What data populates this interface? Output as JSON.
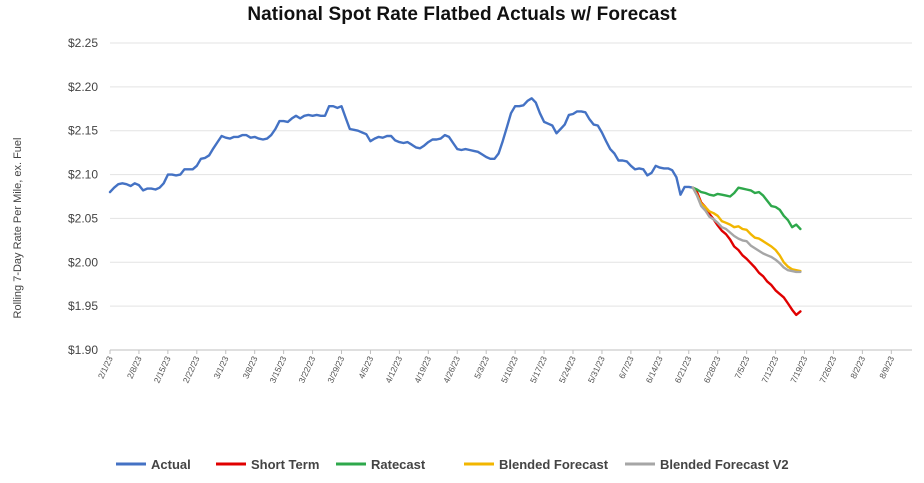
{
  "chart_data": {
    "type": "line",
    "title": "National Spot Rate Flatbed Actuals w/ Forecast",
    "xlabel": "",
    "ylabel": "Rolling 7-Day Rate Per Mile, ex. Fuel",
    "ylim": [
      1.9,
      2.25
    ],
    "y_ticks": [
      "$1.90",
      "$1.95",
      "$2.00",
      "$2.05",
      "$2.10",
      "$2.15",
      "$2.20",
      "$2.25"
    ],
    "y_tick_values": [
      1.9,
      1.95,
      2.0,
      2.05,
      2.1,
      2.15,
      2.2,
      2.25
    ],
    "x_ticks": [
      "2/1/23",
      "2/8/23",
      "2/15/23",
      "2/22/23",
      "3/1/23",
      "3/8/23",
      "3/15/23",
      "3/22/23",
      "3/29/23",
      "4/5/23",
      "4/12/23",
      "4/19/23",
      "4/26/23",
      "5/3/23",
      "5/10/23",
      "5/17/23",
      "5/24/23",
      "5/31/23",
      "6/7/23",
      "6/14/23",
      "6/21/23",
      "6/28/23",
      "7/5/23",
      "7/12/23",
      "7/19/23",
      "7/26/23",
      "8/2/23",
      "8/9/23"
    ],
    "x_range": [
      "2023-02-01",
      "2023-08-14"
    ],
    "grid": "horizontal",
    "legend_position": "bottom",
    "series": [
      {
        "name": "Actual",
        "color": "#4472C4",
        "points": [
          [
            "2023-02-01",
            2.08
          ],
          [
            "2023-02-02",
            2.085
          ],
          [
            "2023-02-03",
            2.089
          ],
          [
            "2023-02-04",
            2.09
          ],
          [
            "2023-02-05",
            2.089
          ],
          [
            "2023-02-06",
            2.087
          ],
          [
            "2023-02-07",
            2.09
          ],
          [
            "2023-02-08",
            2.088
          ],
          [
            "2023-02-09",
            2.082
          ],
          [
            "2023-02-10",
            2.084
          ],
          [
            "2023-02-11",
            2.084
          ],
          [
            "2023-02-12",
            2.083
          ],
          [
            "2023-02-13",
            2.085
          ],
          [
            "2023-02-14",
            2.09
          ],
          [
            "2023-02-15",
            2.1
          ],
          [
            "2023-02-16",
            2.1
          ],
          [
            "2023-02-17",
            2.099
          ],
          [
            "2023-02-18",
            2.1
          ],
          [
            "2023-02-19",
            2.106
          ],
          [
            "2023-02-20",
            2.106
          ],
          [
            "2023-02-21",
            2.106
          ],
          [
            "2023-02-22",
            2.11
          ],
          [
            "2023-02-23",
            2.118
          ],
          [
            "2023-02-24",
            2.119
          ],
          [
            "2023-02-25",
            2.122
          ],
          [
            "2023-02-26",
            2.13
          ],
          [
            "2023-02-27",
            2.137
          ],
          [
            "2023-02-28",
            2.144
          ],
          [
            "2023-03-01",
            2.142
          ],
          [
            "2023-03-02",
            2.141
          ],
          [
            "2023-03-03",
            2.143
          ],
          [
            "2023-03-04",
            2.143
          ],
          [
            "2023-03-05",
            2.145
          ],
          [
            "2023-03-06",
            2.145
          ],
          [
            "2023-03-07",
            2.142
          ],
          [
            "2023-03-08",
            2.143
          ],
          [
            "2023-03-09",
            2.141
          ],
          [
            "2023-03-10",
            2.14
          ],
          [
            "2023-03-11",
            2.141
          ],
          [
            "2023-03-12",
            2.145
          ],
          [
            "2023-03-13",
            2.152
          ],
          [
            "2023-03-14",
            2.161
          ],
          [
            "2023-03-15",
            2.161
          ],
          [
            "2023-03-16",
            2.16
          ],
          [
            "2023-03-17",
            2.164
          ],
          [
            "2023-03-18",
            2.167
          ],
          [
            "2023-03-19",
            2.164
          ],
          [
            "2023-03-20",
            2.167
          ],
          [
            "2023-03-21",
            2.168
          ],
          [
            "2023-03-22",
            2.167
          ],
          [
            "2023-03-23",
            2.168
          ],
          [
            "2023-03-24",
            2.167
          ],
          [
            "2023-03-25",
            2.167
          ],
          [
            "2023-03-26",
            2.178
          ],
          [
            "2023-03-27",
            2.178
          ],
          [
            "2023-03-28",
            2.176
          ],
          [
            "2023-03-29",
            2.178
          ],
          [
            "2023-03-30",
            2.165
          ],
          [
            "2023-03-31",
            2.152
          ],
          [
            "2023-04-01",
            2.151
          ],
          [
            "2023-04-02",
            2.15
          ],
          [
            "2023-04-03",
            2.148
          ],
          [
            "2023-04-04",
            2.146
          ],
          [
            "2023-04-05",
            2.138
          ],
          [
            "2023-04-06",
            2.141
          ],
          [
            "2023-04-07",
            2.143
          ],
          [
            "2023-04-08",
            2.142
          ],
          [
            "2023-04-09",
            2.144
          ],
          [
            "2023-04-10",
            2.144
          ],
          [
            "2023-04-11",
            2.139
          ],
          [
            "2023-04-12",
            2.137
          ],
          [
            "2023-04-13",
            2.136
          ],
          [
            "2023-04-14",
            2.137
          ],
          [
            "2023-04-15",
            2.134
          ],
          [
            "2023-04-16",
            2.131
          ],
          [
            "2023-04-17",
            2.13
          ],
          [
            "2023-04-18",
            2.133
          ],
          [
            "2023-04-19",
            2.137
          ],
          [
            "2023-04-20",
            2.14
          ],
          [
            "2023-04-21",
            2.14
          ],
          [
            "2023-04-22",
            2.141
          ],
          [
            "2023-04-23",
            2.145
          ],
          [
            "2023-04-24",
            2.143
          ],
          [
            "2023-04-25",
            2.136
          ],
          [
            "2023-04-26",
            2.129
          ],
          [
            "2023-04-27",
            2.128
          ],
          [
            "2023-04-28",
            2.129
          ],
          [
            "2023-04-29",
            2.128
          ],
          [
            "2023-04-30",
            2.127
          ],
          [
            "2023-05-01",
            2.126
          ],
          [
            "2023-05-02",
            2.123
          ],
          [
            "2023-05-03",
            2.12
          ],
          [
            "2023-05-04",
            2.118
          ],
          [
            "2023-05-05",
            2.118
          ],
          [
            "2023-05-06",
            2.124
          ],
          [
            "2023-05-07",
            2.138
          ],
          [
            "2023-05-08",
            2.154
          ],
          [
            "2023-05-09",
            2.17
          ],
          [
            "2023-05-10",
            2.178
          ],
          [
            "2023-05-11",
            2.178
          ],
          [
            "2023-05-12",
            2.179
          ],
          [
            "2023-05-13",
            2.184
          ],
          [
            "2023-05-14",
            2.187
          ],
          [
            "2023-05-15",
            2.182
          ],
          [
            "2023-05-16",
            2.17
          ],
          [
            "2023-05-17",
            2.16
          ],
          [
            "2023-05-18",
            2.158
          ],
          [
            "2023-05-19",
            2.156
          ],
          [
            "2023-05-20",
            2.147
          ],
          [
            "2023-05-21",
            2.152
          ],
          [
            "2023-05-22",
            2.157
          ],
          [
            "2023-05-23",
            2.168
          ],
          [
            "2023-05-24",
            2.169
          ],
          [
            "2023-05-25",
            2.172
          ],
          [
            "2023-05-26",
            2.172
          ],
          [
            "2023-05-27",
            2.171
          ],
          [
            "2023-05-28",
            2.163
          ],
          [
            "2023-05-29",
            2.157
          ],
          [
            "2023-05-30",
            2.156
          ],
          [
            "2023-05-31",
            2.148
          ],
          [
            "2023-06-01",
            2.138
          ],
          [
            "2023-06-02",
            2.129
          ],
          [
            "2023-06-03",
            2.124
          ],
          [
            "2023-06-04",
            2.116
          ],
          [
            "2023-06-05",
            2.116
          ],
          [
            "2023-06-06",
            2.115
          ],
          [
            "2023-06-07",
            2.11
          ],
          [
            "2023-06-08",
            2.106
          ],
          [
            "2023-06-09",
            2.107
          ],
          [
            "2023-06-10",
            2.106
          ],
          [
            "2023-06-11",
            2.099
          ],
          [
            "2023-06-12",
            2.102
          ],
          [
            "2023-06-13",
            2.11
          ],
          [
            "2023-06-14",
            2.108
          ],
          [
            "2023-06-15",
            2.107
          ],
          [
            "2023-06-16",
            2.107
          ],
          [
            "2023-06-17",
            2.105
          ],
          [
            "2023-06-18",
            2.097
          ],
          [
            "2023-06-19",
            2.077
          ],
          [
            "2023-06-20",
            2.086
          ],
          [
            "2023-06-21",
            2.086
          ],
          [
            "2023-06-22",
            2.085
          ]
        ]
      },
      {
        "name": "Short Term",
        "color": "#E00000",
        "points": [
          [
            "2023-06-22",
            2.085
          ],
          [
            "2023-06-23",
            2.08
          ],
          [
            "2023-06-24",
            2.068
          ],
          [
            "2023-06-25",
            2.063
          ],
          [
            "2023-06-26",
            2.055
          ],
          [
            "2023-06-27",
            2.049
          ],
          [
            "2023-06-28",
            2.042
          ],
          [
            "2023-06-29",
            2.036
          ],
          [
            "2023-06-30",
            2.032
          ],
          [
            "2023-07-01",
            2.026
          ],
          [
            "2023-07-02",
            2.018
          ],
          [
            "2023-07-03",
            2.014
          ],
          [
            "2023-07-04",
            2.008
          ],
          [
            "2023-07-05",
            2.004
          ],
          [
            "2023-07-06",
            1.999
          ],
          [
            "2023-07-07",
            1.994
          ],
          [
            "2023-07-08",
            1.988
          ],
          [
            "2023-07-09",
            1.984
          ],
          [
            "2023-07-10",
            1.978
          ],
          [
            "2023-07-11",
            1.974
          ],
          [
            "2023-07-12",
            1.968
          ],
          [
            "2023-07-13",
            1.964
          ],
          [
            "2023-07-14",
            1.96
          ],
          [
            "2023-07-15",
            1.953
          ],
          [
            "2023-07-16",
            1.946
          ],
          [
            "2023-07-17",
            1.94
          ],
          [
            "2023-07-18",
            1.944
          ]
        ]
      },
      {
        "name": "Ratecast",
        "color": "#2EA84B",
        "points": [
          [
            "2023-06-22",
            2.085
          ],
          [
            "2023-06-23",
            2.083
          ],
          [
            "2023-06-24",
            2.08
          ],
          [
            "2023-06-25",
            2.079
          ],
          [
            "2023-06-26",
            2.077
          ],
          [
            "2023-06-27",
            2.076
          ],
          [
            "2023-06-28",
            2.078
          ],
          [
            "2023-06-29",
            2.077
          ],
          [
            "2023-06-30",
            2.076
          ],
          [
            "2023-07-01",
            2.075
          ],
          [
            "2023-07-02",
            2.079
          ],
          [
            "2023-07-03",
            2.085
          ],
          [
            "2023-07-04",
            2.084
          ],
          [
            "2023-07-05",
            2.083
          ],
          [
            "2023-07-06",
            2.082
          ],
          [
            "2023-07-07",
            2.079
          ],
          [
            "2023-07-08",
            2.08
          ],
          [
            "2023-07-09",
            2.076
          ],
          [
            "2023-07-10",
            2.07
          ],
          [
            "2023-07-11",
            2.064
          ],
          [
            "2023-07-12",
            2.063
          ],
          [
            "2023-07-13",
            2.06
          ],
          [
            "2023-07-14",
            2.053
          ],
          [
            "2023-07-15",
            2.048
          ],
          [
            "2023-07-16",
            2.04
          ],
          [
            "2023-07-17",
            2.043
          ],
          [
            "2023-07-18",
            2.038
          ]
        ]
      },
      {
        "name": "Blended Forecast",
        "color": "#F2B600",
        "points": [
          [
            "2023-06-22",
            2.085
          ],
          [
            "2023-06-23",
            2.077
          ],
          [
            "2023-06-24",
            2.067
          ],
          [
            "2023-06-25",
            2.063
          ],
          [
            "2023-06-26",
            2.058
          ],
          [
            "2023-06-27",
            2.056
          ],
          [
            "2023-06-28",
            2.053
          ],
          [
            "2023-06-29",
            2.047
          ],
          [
            "2023-06-30",
            2.045
          ],
          [
            "2023-07-01",
            2.043
          ],
          [
            "2023-07-02",
            2.04
          ],
          [
            "2023-07-03",
            2.041
          ],
          [
            "2023-07-04",
            2.038
          ],
          [
            "2023-07-05",
            2.037
          ],
          [
            "2023-07-06",
            2.032
          ],
          [
            "2023-07-07",
            2.028
          ],
          [
            "2023-07-08",
            2.027
          ],
          [
            "2023-07-09",
            2.024
          ],
          [
            "2023-07-10",
            2.021
          ],
          [
            "2023-07-11",
            2.018
          ],
          [
            "2023-07-12",
            2.014
          ],
          [
            "2023-07-13",
            2.008
          ],
          [
            "2023-07-14",
            2.0
          ],
          [
            "2023-07-15",
            1.995
          ],
          [
            "2023-07-16",
            1.992
          ],
          [
            "2023-07-17",
            1.991
          ],
          [
            "2023-07-18",
            1.99
          ]
        ]
      },
      {
        "name": "Blended Forecast V2",
        "color": "#A6A6A6",
        "points": [
          [
            "2023-06-22",
            2.085
          ],
          [
            "2023-06-23",
            2.076
          ],
          [
            "2023-06-24",
            2.064
          ],
          [
            "2023-06-25",
            2.059
          ],
          [
            "2023-06-26",
            2.052
          ],
          [
            "2023-06-27",
            2.049
          ],
          [
            "2023-06-28",
            2.045
          ],
          [
            "2023-06-29",
            2.04
          ],
          [
            "2023-06-30",
            2.038
          ],
          [
            "2023-07-01",
            2.034
          ],
          [
            "2023-07-02",
            2.03
          ],
          [
            "2023-07-03",
            2.027
          ],
          [
            "2023-07-04",
            2.025
          ],
          [
            "2023-07-05",
            2.024
          ],
          [
            "2023-07-06",
            2.019
          ],
          [
            "2023-07-07",
            2.016
          ],
          [
            "2023-07-08",
            2.013
          ],
          [
            "2023-07-09",
            2.01
          ],
          [
            "2023-07-10",
            2.008
          ],
          [
            "2023-07-11",
            2.006
          ],
          [
            "2023-07-12",
            2.003
          ],
          [
            "2023-07-13",
            1.999
          ],
          [
            "2023-07-14",
            1.994
          ],
          [
            "2023-07-15",
            1.991
          ],
          [
            "2023-07-16",
            1.99
          ],
          [
            "2023-07-17",
            1.989
          ],
          [
            "2023-07-18",
            1.989
          ]
        ]
      }
    ]
  }
}
